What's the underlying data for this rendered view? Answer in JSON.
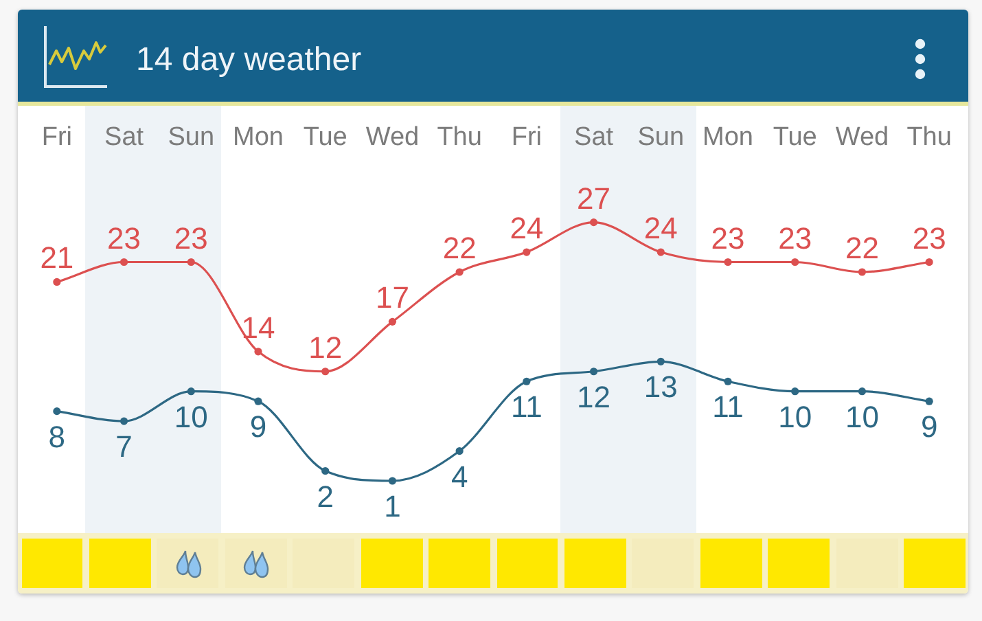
{
  "chart_data": {
    "type": "line",
    "title": "14 day weather",
    "categories": [
      "Fri",
      "Sat",
      "Sun",
      "Mon",
      "Tue",
      "Wed",
      "Thu",
      "Fri",
      "Sat",
      "Sun",
      "Mon",
      "Tue",
      "Wed",
      "Thu"
    ],
    "series": [
      {
        "color": "#dc5050",
        "values": [
          21,
          23,
          23,
          14,
          12,
          17,
          22,
          24,
          27,
          24,
          23,
          23,
          22,
          23
        ]
      },
      {
        "color": "#2d6884",
        "values": [
          8,
          7,
          10,
          9,
          2,
          1,
          4,
          11,
          12,
          13,
          11,
          10,
          10,
          9
        ]
      }
    ],
    "tick_labels": "x",
    "marker": "circle",
    "data_labels": true
  }
}
